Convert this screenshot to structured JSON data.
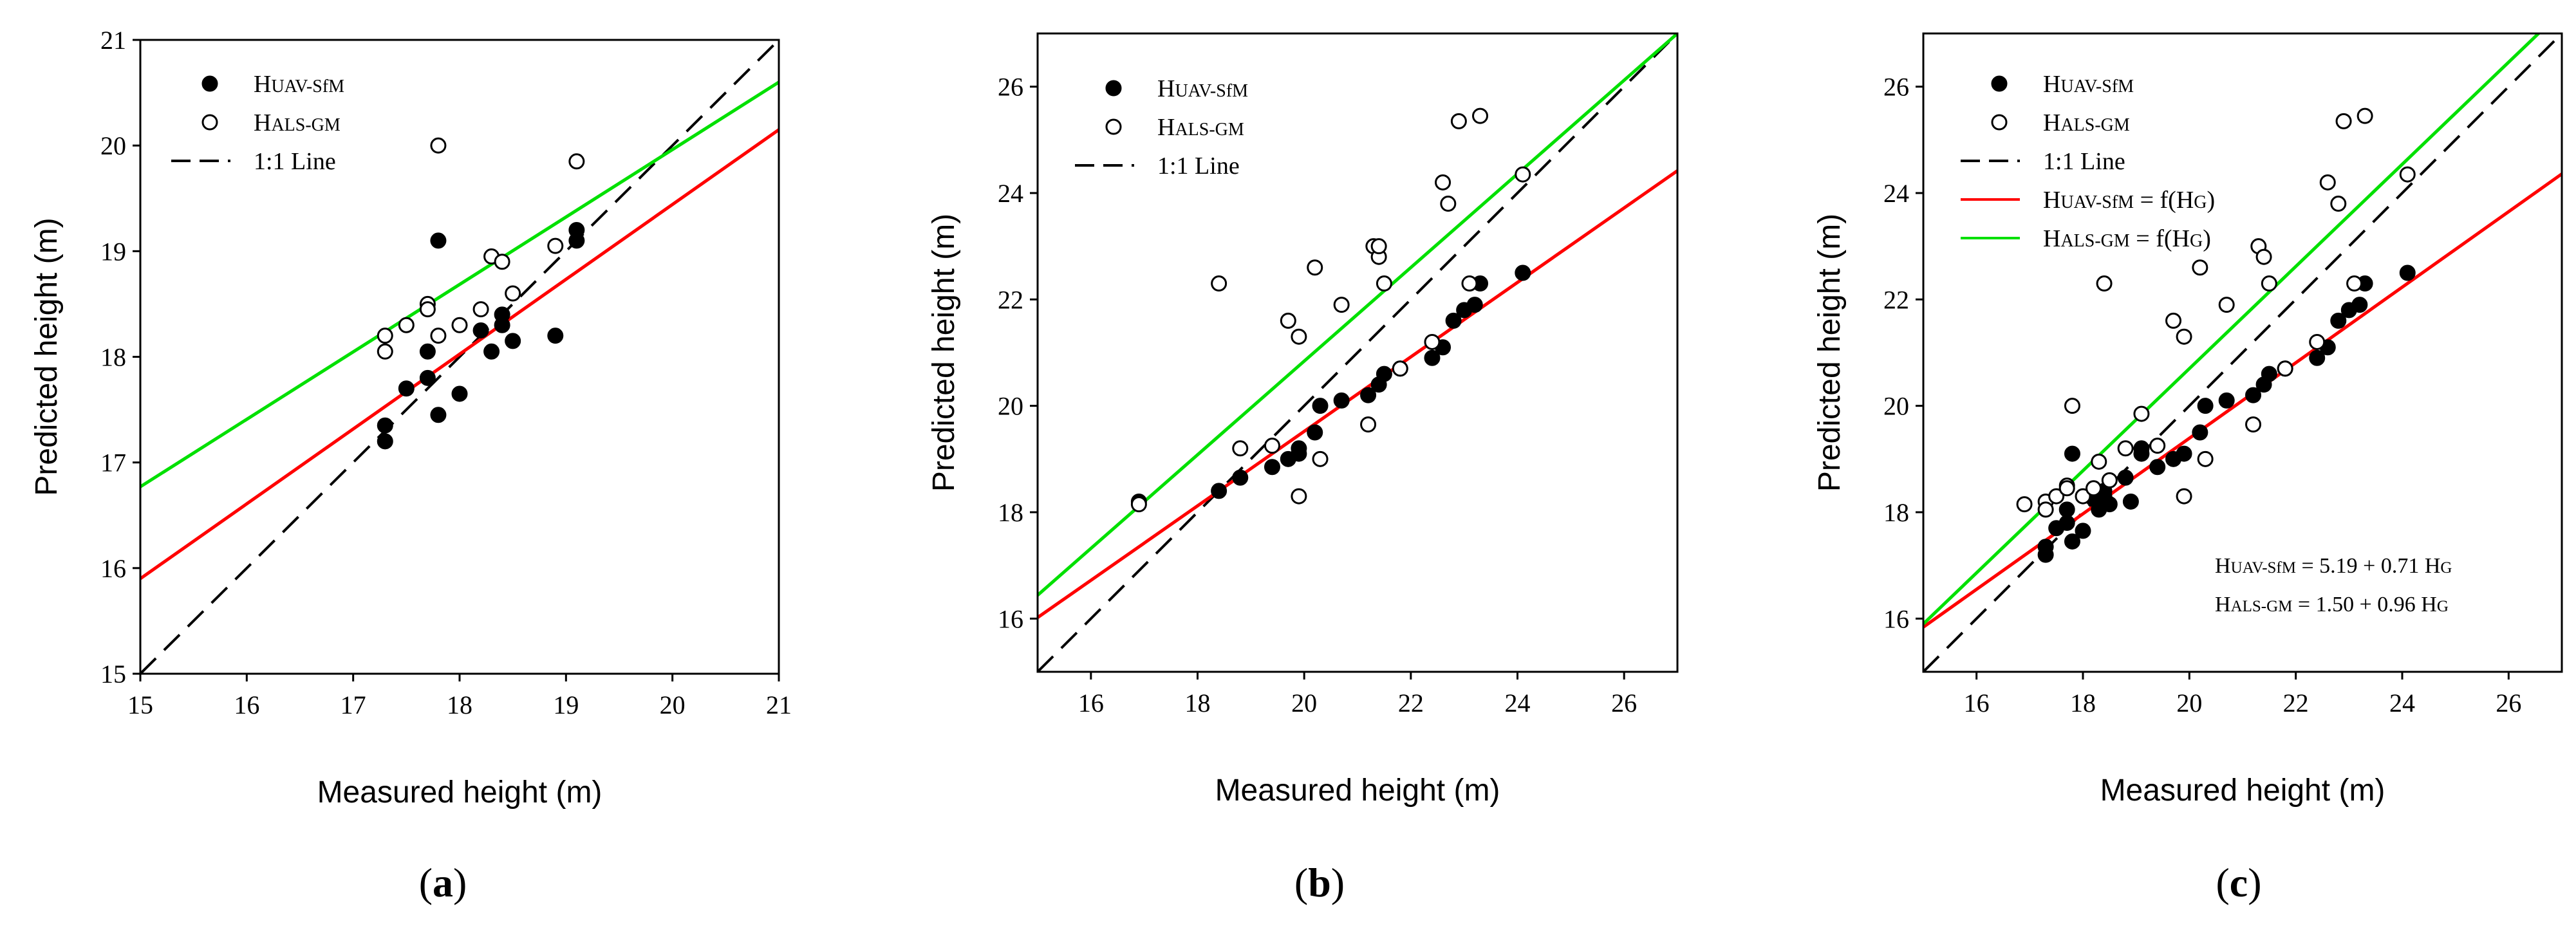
{
  "figure": {
    "panel_captions": [
      "(a)",
      "(b)",
      "(c)"
    ]
  },
  "chart_data": [
    {
      "type": "scatter",
      "panel": "(a)",
      "xlabel": "Measured height (m)",
      "ylabel": "Predicted height (m)",
      "xlim": [
        15,
        21
      ],
      "ylim": [
        15,
        21
      ],
      "xticks": [
        15,
        16,
        17,
        18,
        19,
        20,
        21
      ],
      "yticks": [
        15,
        16,
        17,
        18,
        19,
        20,
        21
      ],
      "series": [
        {
          "name": "HUAV-SfM",
          "kind": "scatter",
          "marker": "filled",
          "points": [
            [
              17.3,
              17.2
            ],
            [
              17.3,
              17.35
            ],
            [
              17.5,
              17.7
            ],
            [
              17.7,
              18.05
            ],
            [
              17.7,
              17.8
            ],
            [
              17.8,
              17.45
            ],
            [
              17.8,
              19.1
            ],
            [
              18.0,
              17.65
            ],
            [
              18.2,
              18.25
            ],
            [
              18.3,
              18.05
            ],
            [
              18.4,
              18.3
            ],
            [
              18.4,
              18.4
            ],
            [
              18.5,
              18.15
            ],
            [
              18.9,
              18.2
            ],
            [
              19.1,
              19.2
            ],
            [
              19.1,
              19.1
            ]
          ]
        },
        {
          "name": "HALS-GM",
          "kind": "scatter",
          "marker": "open",
          "points": [
            [
              17.3,
              18.2
            ],
            [
              17.3,
              18.05
            ],
            [
              17.5,
              18.3
            ],
            [
              17.7,
              18.5
            ],
            [
              17.7,
              18.45
            ],
            [
              17.8,
              20.0
            ],
            [
              17.8,
              18.2
            ],
            [
              18.0,
              18.3
            ],
            [
              18.2,
              18.45
            ],
            [
              18.3,
              18.95
            ],
            [
              18.4,
              18.9
            ],
            [
              18.5,
              18.6
            ],
            [
              18.9,
              19.05
            ],
            [
              19.1,
              19.85
            ]
          ]
        },
        {
          "name": "1:1 Line",
          "kind": "line",
          "style": "dashed",
          "color": "#000000",
          "points": [
            [
              15,
              15
            ],
            [
              21,
              21
            ]
          ]
        },
        {
          "name": "HUAV-SfM fit",
          "kind": "line",
          "color": "#ff0000",
          "points": [
            [
              15,
              15.9
            ],
            [
              21,
              20.15
            ]
          ]
        },
        {
          "name": "HALS-GM fit",
          "kind": "line",
          "color": "#00e000",
          "points": [
            [
              15,
              16.77
            ],
            [
              21,
              20.6
            ]
          ]
        }
      ],
      "legend": [
        "HUAV-SfM",
        "HALS-GM",
        "1:1 Line"
      ],
      "legend_position": "top-left"
    },
    {
      "type": "scatter",
      "panel": "(b)",
      "xlabel": "Measured height (m)",
      "ylabel": "Predicted height (m)",
      "xlim": [
        15,
        27
      ],
      "ylim": [
        15,
        27
      ],
      "xticks": [
        16,
        18,
        20,
        22,
        24,
        26
      ],
      "yticks": [
        16,
        18,
        20,
        22,
        24,
        26
      ],
      "series": [
        {
          "name": "HUAV-SfM",
          "kind": "scatter",
          "marker": "filled",
          "points": [
            [
              16.9,
              18.2
            ],
            [
              18.4,
              18.4
            ],
            [
              18.8,
              18.65
            ],
            [
              19.4,
              18.85
            ],
            [
              19.7,
              19.0
            ],
            [
              19.9,
              19.1
            ],
            [
              19.9,
              19.2
            ],
            [
              20.2,
              19.5
            ],
            [
              20.3,
              20.0
            ],
            [
              20.7,
              20.1
            ],
            [
              21.2,
              20.2
            ],
            [
              21.4,
              20.4
            ],
            [
              21.5,
              20.6
            ],
            [
              21.8,
              20.7
            ],
            [
              22.4,
              20.9
            ],
            [
              22.6,
              21.1
            ],
            [
              22.8,
              21.6
            ],
            [
              23.0,
              21.8
            ],
            [
              23.2,
              21.9
            ],
            [
              23.3,
              22.3
            ],
            [
              24.1,
              22.5
            ]
          ]
        },
        {
          "name": "HALS-GM",
          "kind": "scatter",
          "marker": "open",
          "points": [
            [
              16.9,
              18.15
            ],
            [
              18.4,
              22.3
            ],
            [
              18.8,
              19.2
            ],
            [
              19.4,
              19.25
            ],
            [
              19.7,
              21.6
            ],
            [
              19.9,
              21.3
            ],
            [
              19.9,
              18.3
            ],
            [
              20.2,
              22.6
            ],
            [
              20.3,
              19.0
            ],
            [
              20.7,
              21.9
            ],
            [
              21.2,
              19.65
            ],
            [
              21.3,
              23.0
            ],
            [
              21.4,
              22.8
            ],
            [
              21.4,
              23.0
            ],
            [
              21.5,
              22.3
            ],
            [
              21.8,
              20.7
            ],
            [
              22.4,
              21.2
            ],
            [
              22.6,
              24.2
            ],
            [
              22.7,
              23.8
            ],
            [
              22.9,
              25.35
            ],
            [
              23.1,
              22.3
            ],
            [
              23.3,
              25.45
            ],
            [
              24.1,
              24.35
            ]
          ]
        },
        {
          "name": "1:1 Line",
          "kind": "line",
          "style": "dashed",
          "color": "#000000",
          "points": [
            [
              15,
              15
            ],
            [
              27,
              27
            ]
          ]
        },
        {
          "name": "HUAV-SfM fit",
          "kind": "line",
          "color": "#ff0000",
          "points": [
            [
              15,
              16.02
            ],
            [
              27,
              24.42
            ]
          ]
        },
        {
          "name": "HALS-GM fit",
          "kind": "line",
          "color": "#00e000",
          "points": [
            [
              15,
              16.44
            ],
            [
              27,
              27.0
            ]
          ]
        }
      ],
      "legend": [
        "HUAV-SfM",
        "HALS-GM",
        "1:1 Line"
      ],
      "legend_position": "top-left"
    },
    {
      "type": "scatter",
      "panel": "(c)",
      "xlabel": "Measured height (m)",
      "ylabel": "Predicted height (m)",
      "xlim": [
        15,
        27
      ],
      "ylim": [
        15,
        27
      ],
      "xticks": [
        16,
        18,
        20,
        22,
        24,
        26
      ],
      "yticks": [
        16,
        18,
        20,
        22,
        24,
        26
      ],
      "series": [
        {
          "name": "HUAV-SfM",
          "kind": "scatter",
          "marker": "filled",
          "points": [
            [
              17.3,
              17.2
            ],
            [
              17.3,
              17.35
            ],
            [
              17.5,
              17.7
            ],
            [
              17.7,
              18.05
            ],
            [
              17.7,
              17.8
            ],
            [
              17.8,
              17.45
            ],
            [
              17.8,
              19.1
            ],
            [
              18.0,
              17.65
            ],
            [
              18.2,
              18.25
            ],
            [
              18.3,
              18.05
            ],
            [
              18.4,
              18.3
            ],
            [
              18.4,
              18.4
            ],
            [
              18.5,
              18.15
            ],
            [
              18.9,
              18.2
            ],
            [
              19.1,
              19.2
            ],
            [
              19.1,
              19.1
            ],
            [
              18.8,
              18.65
            ],
            [
              19.4,
              18.85
            ],
            [
              19.7,
              19.0
            ],
            [
              19.9,
              19.1
            ],
            [
              20.2,
              19.5
            ],
            [
              20.3,
              20.0
            ],
            [
              20.7,
              20.1
            ],
            [
              21.2,
              20.2
            ],
            [
              21.4,
              20.4
            ],
            [
              21.5,
              20.6
            ],
            [
              21.8,
              20.7
            ],
            [
              22.4,
              20.9
            ],
            [
              22.6,
              21.1
            ],
            [
              22.8,
              21.6
            ],
            [
              23.0,
              21.8
            ],
            [
              23.2,
              21.9
            ],
            [
              23.3,
              22.3
            ],
            [
              24.1,
              22.5
            ]
          ]
        },
        {
          "name": "HALS-GM",
          "kind": "scatter",
          "marker": "open",
          "points": [
            [
              16.9,
              18.15
            ],
            [
              17.3,
              18.2
            ],
            [
              17.3,
              18.05
            ],
            [
              17.5,
              18.3
            ],
            [
              17.7,
              18.5
            ],
            [
              17.7,
              18.45
            ],
            [
              17.8,
              20.0
            ],
            [
              18.0,
              18.3
            ],
            [
              18.2,
              18.45
            ],
            [
              18.3,
              18.95
            ],
            [
              18.4,
              22.3
            ],
            [
              18.5,
              18.6
            ],
            [
              18.8,
              19.2
            ],
            [
              19.1,
              19.85
            ],
            [
              19.4,
              19.25
            ],
            [
              19.7,
              21.6
            ],
            [
              19.9,
              21.3
            ],
            [
              19.9,
              18.3
            ],
            [
              20.2,
              22.6
            ],
            [
              20.3,
              19.0
            ],
            [
              20.7,
              21.9
            ],
            [
              21.2,
              19.65
            ],
            [
              21.3,
              23.0
            ],
            [
              21.4,
              22.8
            ],
            [
              21.5,
              22.3
            ],
            [
              21.8,
              20.7
            ],
            [
              22.4,
              21.2
            ],
            [
              22.6,
              24.2
            ],
            [
              22.8,
              23.8
            ],
            [
              22.9,
              25.35
            ],
            [
              23.1,
              22.3
            ],
            [
              23.3,
              25.45
            ],
            [
              24.1,
              24.35
            ]
          ]
        },
        {
          "name": "1:1 Line",
          "kind": "line",
          "style": "dashed",
          "color": "#000000",
          "points": [
            [
              15,
              15
            ],
            [
              27,
              27
            ]
          ]
        },
        {
          "name": "HUAV-SfM = f(HG)",
          "kind": "line",
          "color": "#ff0000",
          "points": [
            [
              15,
              15.84
            ],
            [
              27,
              24.36
            ]
          ]
        },
        {
          "name": "HALS-GM = f(HG)",
          "kind": "line",
          "color": "#00e000",
          "points": [
            [
              15,
              15.9
            ],
            [
              27,
              27.42
            ]
          ]
        }
      ],
      "legend": [
        "HUAV-SfM",
        "HALS-GM",
        "1:1 Line",
        "HUAV-SfM = f(HG)",
        "HALS-GM = f(HG)"
      ],
      "legend_position": "top-left",
      "annotations": [
        "HUAV-SfM = 5.19 + 0.71 HG",
        "HALS-GM = 1.50 + 0.96 HG"
      ]
    }
  ]
}
